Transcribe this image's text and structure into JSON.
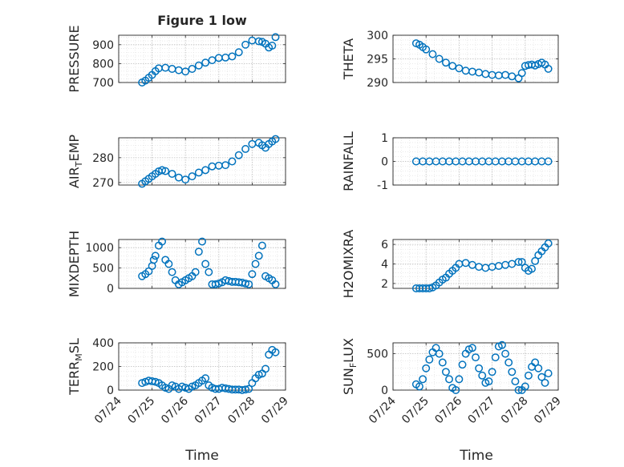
{
  "figure": {
    "title": "Figure 1 low",
    "marker_color": "#0072BD",
    "grid": "dotted major and minor",
    "x_axis": {
      "label": "Time",
      "ticks": [
        "07/24",
        "07/25",
        "07/26",
        "07/27",
        "07/28",
        "07/29"
      ],
      "tick_values": [
        0,
        1,
        2,
        3,
        4,
        5
      ]
    }
  },
  "chart_data": [
    {
      "type": "scatter",
      "ylabel": "PRESSURE",
      "ylim": [
        700,
        950
      ],
      "yticks": [
        700,
        800,
        900
      ],
      "x": [
        0.7,
        0.8,
        0.9,
        1.0,
        1.1,
        1.2,
        1.4,
        1.6,
        1.8,
        2.0,
        2.2,
        2.4,
        2.6,
        2.8,
        3.0,
        3.2,
        3.4,
        3.6,
        3.8,
        4.0,
        4.2,
        4.3,
        4.4,
        4.5,
        4.6,
        4.7
      ],
      "y": [
        700,
        710,
        725,
        740,
        760,
        775,
        778,
        772,
        765,
        758,
        772,
        790,
        805,
        818,
        830,
        832,
        838,
        860,
        900,
        922,
        918,
        915,
        905,
        885,
        895,
        940
      ]
    },
    {
      "type": "scatter",
      "ylabel": "THETA",
      "ylim": [
        290,
        300
      ],
      "yticks": [
        290,
        295,
        300
      ],
      "x": [
        0.7,
        0.8,
        0.9,
        1.0,
        1.2,
        1.4,
        1.6,
        1.8,
        2.0,
        2.2,
        2.4,
        2.6,
        2.8,
        3.0,
        3.2,
        3.4,
        3.6,
        3.8,
        3.9,
        4.0,
        4.1,
        4.2,
        4.3,
        4.4,
        4.5,
        4.6,
        4.7
      ],
      "y": [
        298.3,
        298.0,
        297.5,
        297.0,
        296.0,
        295.0,
        294.2,
        293.5,
        293.0,
        292.5,
        292.3,
        292.1,
        291.8,
        291.6,
        291.5,
        291.6,
        291.3,
        290.9,
        292.0,
        293.5,
        293.7,
        293.8,
        293.6,
        293.9,
        294.2,
        293.8,
        292.9
      ]
    },
    {
      "type": "scatter",
      "ylabel": "AIR_TEMP",
      "ylim": [
        269,
        288
      ],
      "yticks": [
        270,
        280
      ],
      "x": [
        0.7,
        0.8,
        0.9,
        1.0,
        1.1,
        1.2,
        1.3,
        1.4,
        1.6,
        1.8,
        2.0,
        2.2,
        2.4,
        2.6,
        2.8,
        3.0,
        3.2,
        3.4,
        3.6,
        3.8,
        4.0,
        4.2,
        4.3,
        4.4,
        4.5,
        4.6,
        4.7
      ],
      "y": [
        269.5,
        270.5,
        271.5,
        272.5,
        273.5,
        274.5,
        275.0,
        274.6,
        273.5,
        272.0,
        271.2,
        272.5,
        274.0,
        275.0,
        276.5,
        276.8,
        277.0,
        278.5,
        281.0,
        283.5,
        285.5,
        286.0,
        285.0,
        284.0,
        285.5,
        286.5,
        287.5
      ]
    },
    {
      "type": "scatter",
      "ylabel": "RAINFALL",
      "ylim": [
        -1,
        1
      ],
      "yticks": [
        -1,
        0,
        1
      ],
      "x": [
        0.7,
        0.9,
        1.1,
        1.3,
        1.5,
        1.7,
        1.9,
        2.1,
        2.3,
        2.5,
        2.7,
        2.9,
        3.1,
        3.3,
        3.5,
        3.7,
        3.9,
        4.1,
        4.3,
        4.5,
        4.7
      ],
      "y": [
        0,
        0,
        0,
        0,
        0,
        0,
        0,
        0,
        0,
        0,
        0,
        0,
        0,
        0,
        0,
        0,
        0,
        0,
        0,
        0,
        0
      ]
    },
    {
      "type": "scatter",
      "ylabel": "MIXDEPTH",
      "ylim": [
        0,
        1200
      ],
      "yticks": [
        0,
        500,
        1000
      ],
      "x": [
        0.7,
        0.8,
        0.9,
        1.0,
        1.05,
        1.1,
        1.2,
        1.3,
        1.4,
        1.5,
        1.6,
        1.7,
        1.8,
        1.9,
        2.0,
        2.1,
        2.2,
        2.3,
        2.4,
        2.5,
        2.6,
        2.7,
        2.8,
        2.9,
        3.0,
        3.1,
        3.2,
        3.3,
        3.4,
        3.5,
        3.6,
        3.7,
        3.8,
        3.9,
        4.0,
        4.1,
        4.2,
        4.3,
        4.4,
        4.5,
        4.6,
        4.7
      ],
      "y": [
        300,
        350,
        420,
        550,
        700,
        800,
        1050,
        1150,
        700,
        600,
        400,
        200,
        100,
        150,
        200,
        250,
        300,
        400,
        900,
        1150,
        600,
        400,
        100,
        100,
        120,
        150,
        200,
        180,
        160,
        160,
        150,
        140,
        120,
        100,
        350,
        600,
        800,
        1050,
        300,
        250,
        200,
        100
      ]
    },
    {
      "type": "scatter",
      "ylabel": "H2OMIXRA",
      "ylim": [
        1.5,
        6.5
      ],
      "yticks": [
        2,
        4,
        6
      ],
      "x": [
        0.7,
        0.8,
        0.9,
        1.0,
        1.1,
        1.2,
        1.3,
        1.4,
        1.5,
        1.6,
        1.7,
        1.8,
        1.9,
        2.0,
        2.2,
        2.4,
        2.6,
        2.8,
        3.0,
        3.2,
        3.4,
        3.6,
        3.8,
        3.9,
        4.0,
        4.1,
        4.2,
        4.3,
        4.4,
        4.5,
        4.6,
        4.7
      ],
      "y": [
        1.5,
        1.5,
        1.5,
        1.5,
        1.5,
        1.6,
        1.8,
        2.1,
        2.4,
        2.6,
        3.0,
        3.3,
        3.6,
        4.0,
        4.1,
        3.9,
        3.7,
        3.6,
        3.7,
        3.8,
        3.9,
        4.0,
        4.2,
        4.2,
        3.6,
        3.3,
        3.5,
        4.3,
        4.9,
        5.3,
        5.7,
        6.1
      ]
    },
    {
      "type": "scatter",
      "ylabel": "TERR_MSL",
      "ylim": [
        0,
        400
      ],
      "yticks": [
        0,
        200,
        400
      ],
      "x": [
        0.7,
        0.8,
        0.9,
        1.0,
        1.1,
        1.2,
        1.3,
        1.4,
        1.5,
        1.6,
        1.7,
        1.8,
        1.9,
        2.0,
        2.1,
        2.2,
        2.3,
        2.4,
        2.5,
        2.6,
        2.7,
        2.8,
        2.9,
        3.0,
        3.1,
        3.2,
        3.3,
        3.4,
        3.5,
        3.6,
        3.7,
        3.8,
        3.9,
        4.0,
        4.1,
        4.2,
        4.3,
        4.4,
        4.5,
        4.6,
        4.7
      ],
      "y": [
        60,
        70,
        80,
        75,
        70,
        60,
        40,
        20,
        10,
        40,
        30,
        10,
        30,
        20,
        10,
        30,
        40,
        60,
        80,
        100,
        40,
        20,
        10,
        10,
        20,
        15,
        10,
        5,
        5,
        5,
        0,
        5,
        10,
        60,
        100,
        130,
        140,
        180,
        300,
        340,
        320
      ]
    },
    {
      "type": "scatter",
      "ylabel": "SUN_FLUX",
      "ylim": [
        0,
        650
      ],
      "yticks": [
        0,
        500
      ],
      "x": [
        0.7,
        0.8,
        0.9,
        1.0,
        1.1,
        1.2,
        1.3,
        1.4,
        1.5,
        1.6,
        1.7,
        1.8,
        1.9,
        2.0,
        2.1,
        2.2,
        2.3,
        2.4,
        2.5,
        2.6,
        2.7,
        2.8,
        2.9,
        3.0,
        3.1,
        3.2,
        3.3,
        3.4,
        3.5,
        3.6,
        3.7,
        3.8,
        3.9,
        4.0,
        4.1,
        4.2,
        4.3,
        4.4,
        4.5,
        4.6,
        4.7
      ],
      "y": [
        80,
        50,
        150,
        300,
        420,
        520,
        580,
        500,
        380,
        250,
        150,
        30,
        0,
        150,
        350,
        500,
        560,
        580,
        450,
        300,
        200,
        100,
        120,
        250,
        450,
        600,
        620,
        500,
        380,
        250,
        120,
        0,
        0,
        50,
        200,
        320,
        380,
        300,
        180,
        100,
        230
      ]
    }
  ]
}
